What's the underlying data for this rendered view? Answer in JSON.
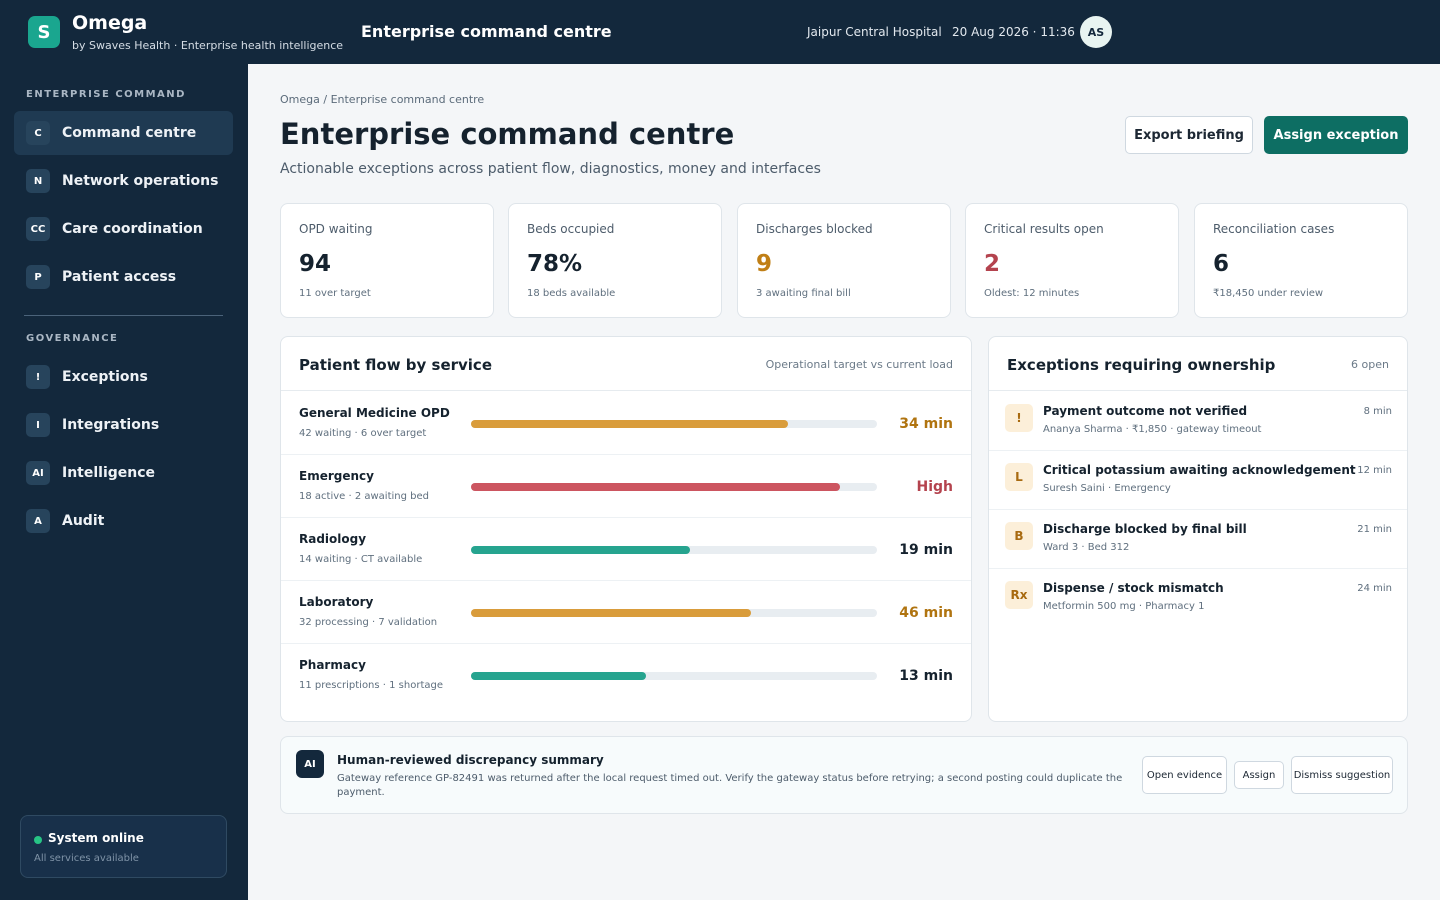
{
  "app": {
    "logo_letter": "S",
    "name": "Omega",
    "tagline": "by Swaves Health · Enterprise health intelligence",
    "header_title": "Enterprise command centre",
    "hospital": "Jaipur Central Hospital",
    "datetime": "20 Aug 2026 · 11:36",
    "user_initials": "AS"
  },
  "sidebar": {
    "section_command": "ENTERPRISE COMMAND",
    "command_items": [
      {
        "badge": "C",
        "label": "Command centre",
        "active": true
      },
      {
        "badge": "N",
        "label": "Network operations"
      },
      {
        "badge": "CC",
        "label": "Care coordination"
      },
      {
        "badge": "P",
        "label": "Patient access"
      }
    ],
    "section_governance": "GOVERNANCE",
    "governance_items": [
      {
        "badge": "!",
        "label": "Exceptions"
      },
      {
        "badge": "I",
        "label": "Integrations"
      },
      {
        "badge": "AI",
        "label": "Intelligence"
      },
      {
        "badge": "A",
        "label": "Audit"
      }
    ],
    "status": {
      "title": "System online",
      "subtitle": "All services available",
      "color": "#27c485"
    }
  },
  "page": {
    "breadcrumb": "Omega / Enterprise command centre",
    "title": "Enterprise command centre",
    "subtitle": "Actionable exceptions across patient flow, diagnostics, money and interfaces",
    "export_label": "Export briefing",
    "assign_label": "Assign exception"
  },
  "kpis": [
    {
      "label": "OPD waiting",
      "value": "94",
      "sub": "11 over target",
      "color": "#15222e"
    },
    {
      "label": "Beds occupied",
      "value": "78%",
      "sub": "18 beds available",
      "color": "#15222e"
    },
    {
      "label": "Discharges blocked",
      "value": "9",
      "sub": "3 awaiting final bill",
      "color": "#c07f16"
    },
    {
      "label": "Critical results open",
      "value": "2",
      "sub": "Oldest: 12 minutes",
      "color": "#b4434e"
    },
    {
      "label": "Reconciliation cases",
      "value": "6",
      "sub": "₹18,450 under review",
      "color": "#15222e"
    }
  ],
  "flow": {
    "title": "Patient flow by service",
    "meta": "Operational target vs current load",
    "rows": [
      {
        "name": "General Medicine OPD",
        "detail": "42 waiting · 6 over target",
        "value": "34 min",
        "load": 0.78,
        "color": "#d99c3b",
        "value_color": "#b07410"
      },
      {
        "name": "Emergency",
        "detail": "18 active · 2 awaiting bed",
        "value": "High",
        "load": 0.91,
        "color": "#cc5560",
        "value_color": "#b4434e"
      },
      {
        "name": "Radiology",
        "detail": "14 waiting · CT available",
        "value": "19 min",
        "load": 0.54,
        "color": "#26a48f",
        "value_color": "#15222e"
      },
      {
        "name": "Laboratory",
        "detail": "32 processing · 7 validation",
        "value": "46 min",
        "load": 0.69,
        "color": "#d99c3b",
        "value_color": "#b07410"
      },
      {
        "name": "Pharmacy",
        "detail": "11 prescriptions · 1 shortage",
        "value": "13 min",
        "load": 0.43,
        "color": "#26a48f",
        "value_color": "#15222e"
      }
    ]
  },
  "exceptions": {
    "title": "Exceptions requiring ownership",
    "meta": "6 open",
    "items": [
      {
        "badge": "!",
        "title": "Payment outcome not verified",
        "detail": "Ananya Sharma · ₹1,850 · gateway timeout",
        "time": "8 min"
      },
      {
        "badge": "L",
        "title": "Critical potassium awaiting acknowledgement",
        "detail": "Suresh Saini · Emergency",
        "time": "12 min"
      },
      {
        "badge": "B",
        "title": "Discharge blocked by final bill",
        "detail": "Ward 3 · Bed 312",
        "time": "21 min"
      },
      {
        "badge": "Rx",
        "title": "Dispense / stock mismatch",
        "detail": "Metformin 500 mg · Pharmacy 1",
        "time": "24 min"
      }
    ]
  },
  "ai": {
    "badge": "AI",
    "title": "Human-reviewed discrepancy summary",
    "text": "Gateway reference GP-82491 was returned after the local request timed out. Verify the gateway status before retrying; a second posting could duplicate the payment.",
    "open_label": "Open evidence",
    "assign_label": "Assign",
    "dismiss_label": "Dismiss suggestion"
  },
  "colors": {
    "brand": "#1aa68f",
    "primary": "#0d6e63",
    "navy": "#13283c"
  }
}
